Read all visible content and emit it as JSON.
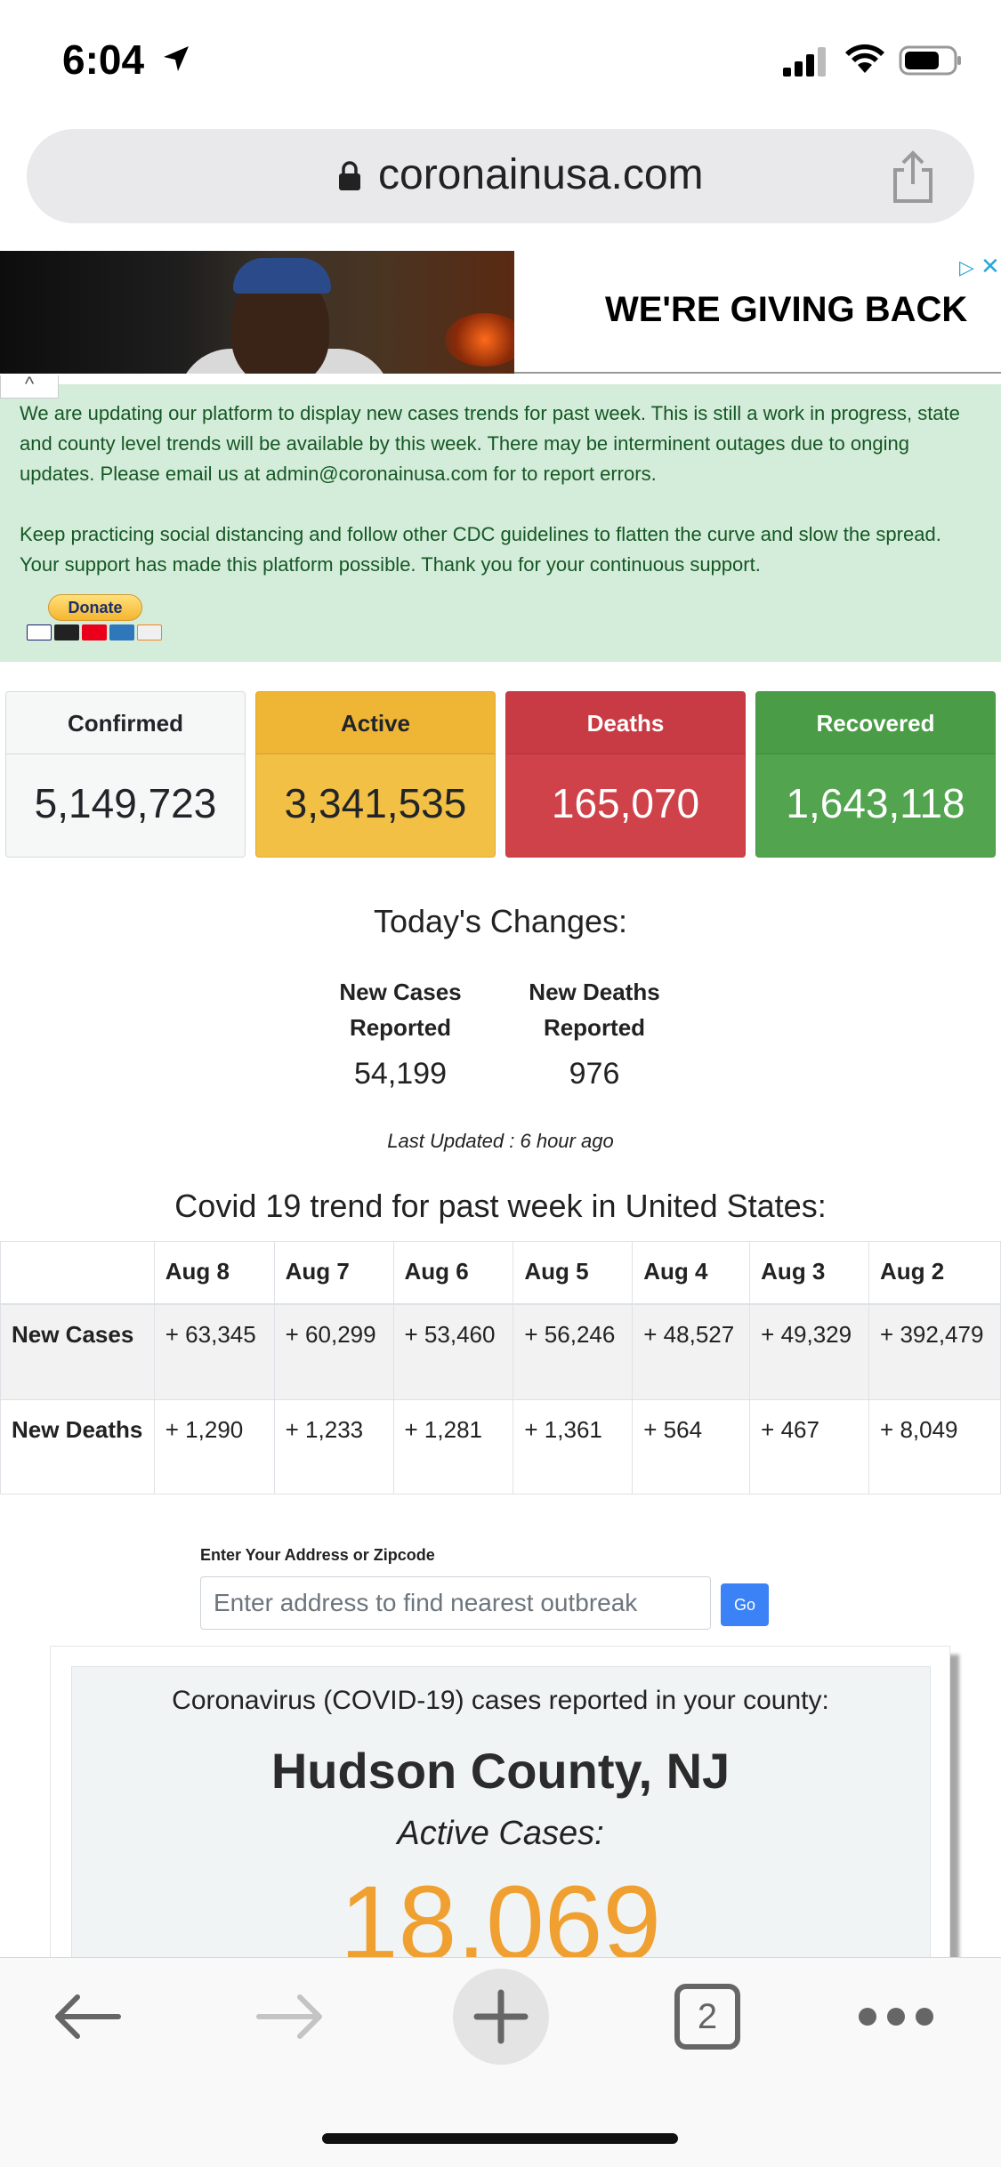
{
  "status_bar": {
    "time": "6:04"
  },
  "browser": {
    "url": "coronainusa.com",
    "tab_count": "2"
  },
  "ad": {
    "headline": "WE'RE GIVING BACK",
    "info_glyph": "▷",
    "close_glyph": "✕",
    "collapse_glyph": "^"
  },
  "notice": {
    "paragraph1": "We are updating our platform to display new cases trends for past week. This is still a work in progress, state and county level trends will be available by this week. There may be interminent outages due to onging updates. Please email us at admin@coronainusa.com for to report errors.",
    "paragraph2": "Keep practicing social distancing and follow other CDC guidelines to flatten the curve and slow the spread. Your support has made this platform possible. Thank you for your continuous support.",
    "donate_label": "Donate"
  },
  "stats": {
    "confirmed": {
      "label": "Confirmed",
      "value": "5,149,723"
    },
    "active": {
      "label": "Active",
      "value": "3,341,535"
    },
    "deaths": {
      "label": "Deaths",
      "value": "165,070"
    },
    "recovered": {
      "label": "Recovered",
      "value": "1,643,118"
    }
  },
  "today": {
    "title": "Today's Changes:",
    "new_cases_label_1": "New Cases",
    "new_cases_label_2": "Reported",
    "new_cases_value": "54,199",
    "new_deaths_label_1": "New Deaths",
    "new_deaths_label_2": "Reported",
    "new_deaths_value": "976",
    "last_updated": "Last Updated : 6 hour ago"
  },
  "trend": {
    "title": "Covid 19 trend for past week in United States:",
    "columns": [
      "Aug 8",
      "Aug 7",
      "Aug 6",
      "Aug 5",
      "Aug 4",
      "Aug 3",
      "Aug 2"
    ],
    "rows": [
      {
        "label": "New Cases",
        "values": [
          "+ 63,345",
          "+ 60,299",
          "+ 53,460",
          "+ 56,246",
          "+ 48,527",
          "+ 49,329",
          "+ 392,479"
        ]
      },
      {
        "label": "New Deaths",
        "values": [
          "+ 1,290",
          "+ 1,233",
          "+ 1,281",
          "+ 1,361",
          "+ 564",
          "+ 467",
          "+ 8,049"
        ]
      }
    ]
  },
  "address": {
    "label": "Enter Your Address or Zipcode",
    "placeholder": "Enter address to find nearest outbreak",
    "go_label": "Go"
  },
  "county": {
    "subtitle": "Coronavirus (COVID-19) cases reported in your county:",
    "name": "Hudson County, NJ",
    "active_label": "Active Cases:",
    "active_value": "18,069"
  },
  "colors": {
    "confirmed": "#f6f7f7",
    "active": "#f2c044",
    "deaths": "#d0424a",
    "recovered": "#52a44f",
    "notice_bg": "#d4edda",
    "county_number": "#f0a030",
    "go_button": "#3b82f6"
  },
  "icons": [
    "location-arrow-icon",
    "signal-icon",
    "wifi-icon",
    "battery-icon",
    "lock-icon",
    "share-icon",
    "back-icon",
    "forward-icon",
    "new-tab-icon",
    "tabs-icon",
    "more-icon"
  ]
}
